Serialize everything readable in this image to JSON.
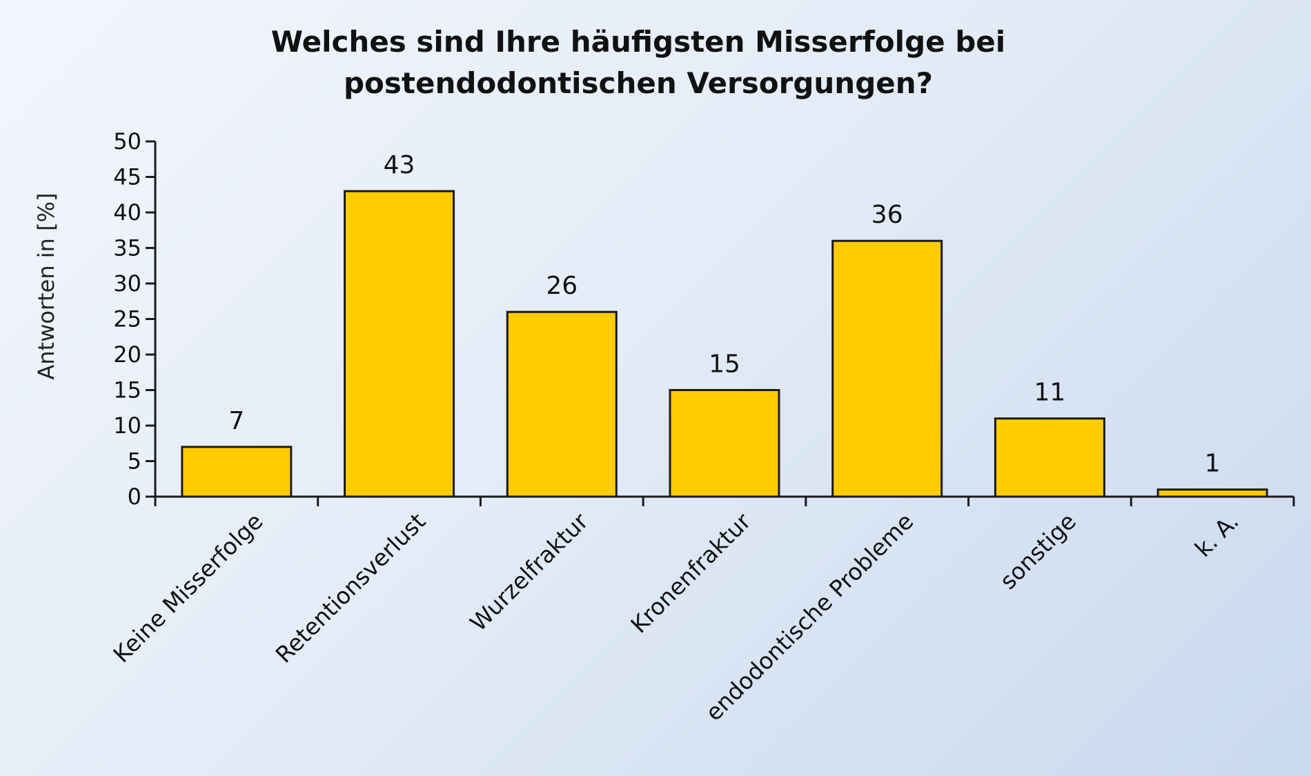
{
  "chart_data": {
    "type": "bar",
    "title": [
      "Welches sind Ihre häufigsten Misserfolge bei",
      "postendodontischen Versorgungen?"
    ],
    "ylabel": "Antworten in [%]",
    "xlabel": "",
    "ylim": [
      0,
      50
    ],
    "yticks": [
      "0",
      "5",
      "10",
      "15",
      "20",
      "25",
      "30",
      "35",
      "40",
      "45",
      "50"
    ],
    "categories": [
      "Keine Misserfolge",
      "Retentionsverlust",
      "Wurzelfraktur",
      "Kronenfraktur",
      "endodontische Probleme",
      "sonstige",
      "k. A."
    ],
    "values": [
      7,
      43,
      26,
      15,
      36,
      11,
      1
    ],
    "value_labels": [
      "7",
      "43",
      "26",
      "15",
      "36",
      "11",
      "1"
    ],
    "bar_color": "#ffcc00",
    "grid": false,
    "legend": "none"
  }
}
